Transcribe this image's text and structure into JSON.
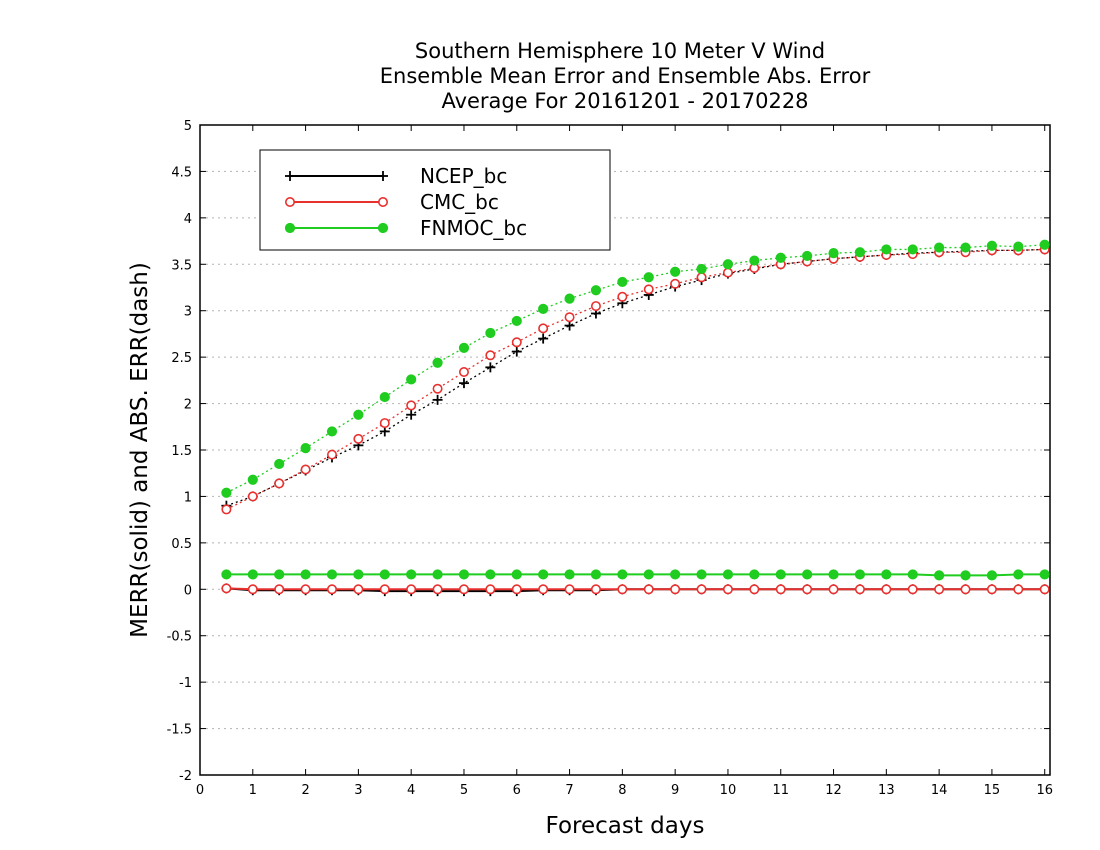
{
  "chart_data": {
    "type": "line",
    "title_lines": [
      "Southern Hemisphere 10 Meter V Wind",
      "Ensemble Mean Error and Ensemble Abs. Error",
      "Average For 20161201 - 20170228"
    ],
    "xlabel": "Forecast days",
    "ylabel": "MERR(solid) and ABS. ERR(dash)",
    "xlim": [
      0,
      16.1
    ],
    "ylim": [
      -2,
      5
    ],
    "xticks": [
      0,
      1,
      2,
      3,
      4,
      5,
      6,
      7,
      8,
      9,
      10,
      11,
      12,
      13,
      14,
      15,
      16
    ],
    "yticks": [
      -2,
      -1.5,
      -1,
      -0.5,
      0,
      0.5,
      1,
      1.5,
      2,
      2.5,
      3,
      3.5,
      4,
      4.5,
      5
    ],
    "y_grid": true,
    "legend_position": "top-left",
    "x": [
      0.5,
      1,
      1.5,
      2,
      2.5,
      3,
      3.5,
      4,
      4.5,
      5,
      5.5,
      6,
      6.5,
      7,
      7.5,
      8,
      8.5,
      9,
      9.5,
      10,
      10.5,
      11,
      11.5,
      12,
      12.5,
      13,
      13.5,
      14,
      14.5,
      15,
      15.5,
      16
    ],
    "series": [
      {
        "name": "NCEP_bc",
        "color": "#000000",
        "marker": "plus",
        "abs_error": [
          0.9,
          1.0,
          1.14,
          1.28,
          1.42,
          1.55,
          1.7,
          1.88,
          2.04,
          2.22,
          2.39,
          2.56,
          2.7,
          2.84,
          2.97,
          3.08,
          3.17,
          3.26,
          3.33,
          3.4,
          3.45,
          3.5,
          3.53,
          3.56,
          3.58,
          3.6,
          3.62,
          3.63,
          3.64,
          3.65,
          3.65,
          3.66
        ],
        "mean_error": [
          0.01,
          -0.01,
          -0.01,
          -0.01,
          -0.01,
          -0.01,
          -0.02,
          -0.02,
          -0.02,
          -0.02,
          -0.02,
          -0.02,
          -0.01,
          -0.01,
          -0.01,
          0.0,
          0.0,
          0.0,
          0.0,
          0.0,
          0.0,
          0.0,
          0.0,
          0.0,
          0.0,
          0.0,
          0.0,
          0.0,
          0.0,
          0.0,
          0.0,
          0.0
        ]
      },
      {
        "name": "CMC_bc",
        "color": "#e8312f",
        "marker": "open-circle",
        "abs_error": [
          0.86,
          1.0,
          1.14,
          1.29,
          1.45,
          1.62,
          1.79,
          1.98,
          2.16,
          2.34,
          2.52,
          2.66,
          2.81,
          2.93,
          3.05,
          3.15,
          3.23,
          3.29,
          3.36,
          3.41,
          3.46,
          3.5,
          3.53,
          3.56,
          3.58,
          3.6,
          3.61,
          3.63,
          3.63,
          3.65,
          3.65,
          3.66
        ],
        "mean_error": [
          0.01,
          0.0,
          0.0,
          0.0,
          0.0,
          0.0,
          0.0,
          0.0,
          0.0,
          0.0,
          0.0,
          0.0,
          0.0,
          0.0,
          0.0,
          0.0,
          0.0,
          0.0,
          0.0,
          0.0,
          0.0,
          0.0,
          0.0,
          0.0,
          0.0,
          0.0,
          0.0,
          0.0,
          0.0,
          0.0,
          0.0,
          0.0
        ]
      },
      {
        "name": "FNMOC_bc",
        "color": "#1fcc1f",
        "marker": "filled-circle",
        "abs_error": [
          1.04,
          1.18,
          1.35,
          1.52,
          1.7,
          1.88,
          2.07,
          2.26,
          2.44,
          2.6,
          2.76,
          2.89,
          3.02,
          3.13,
          3.22,
          3.31,
          3.36,
          3.42,
          3.45,
          3.5,
          3.54,
          3.57,
          3.59,
          3.62,
          3.63,
          3.66,
          3.66,
          3.68,
          3.68,
          3.7,
          3.69,
          3.71
        ],
        "mean_error": [
          0.16,
          0.16,
          0.16,
          0.16,
          0.16,
          0.16,
          0.16,
          0.16,
          0.16,
          0.16,
          0.16,
          0.16,
          0.16,
          0.16,
          0.16,
          0.16,
          0.16,
          0.16,
          0.16,
          0.16,
          0.16,
          0.16,
          0.16,
          0.16,
          0.16,
          0.16,
          0.16,
          0.15,
          0.15,
          0.15,
          0.16,
          0.16
        ]
      }
    ]
  }
}
